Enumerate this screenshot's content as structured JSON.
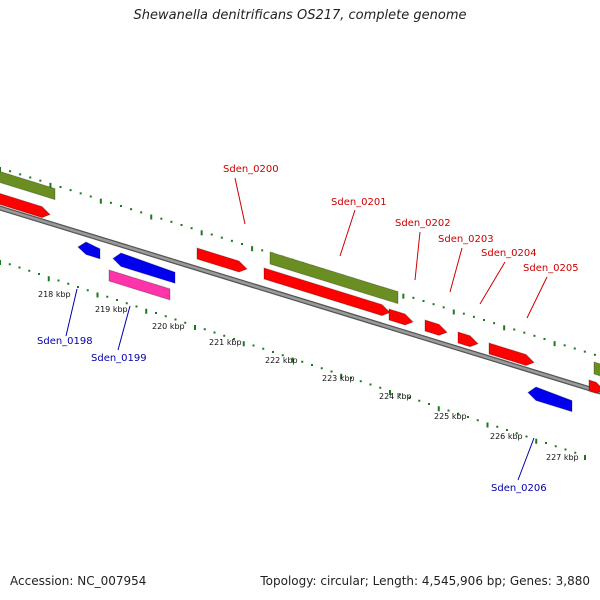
{
  "title": "Shewanella denitrificans OS217, complete genome",
  "footer": {
    "accession": "Accession: NC_007954",
    "summary": "Topology: circular; Length: 4,545,906 bp; Genes: 3,880"
  },
  "colors": {
    "forward_gene": "#ff0000",
    "reverse_gene": "#0000ee",
    "rna_gene": "#ff33aa",
    "cds_region": "#6b8e23",
    "backbone": "#808080",
    "tick": "#1a7a1a",
    "label_forward": "#cc0000",
    "label_reverse": "#0000aa"
  },
  "axis": {
    "tick_labels": [
      "218 kbp",
      "219 kbp",
      "220 kbp",
      "221 kbp",
      "222 kbp",
      "223 kbp",
      "224 kbp",
      "225 kbp",
      "226 kbp",
      "227 kbp"
    ]
  },
  "genes": [
    {
      "name": "Sden_0198",
      "strand": "reverse"
    },
    {
      "name": "Sden_0199",
      "strand": "reverse"
    },
    {
      "name": "Sden_0200",
      "strand": "forward"
    },
    {
      "name": "Sden_0201",
      "strand": "forward"
    },
    {
      "name": "Sden_0202",
      "strand": "forward"
    },
    {
      "name": "Sden_0203",
      "strand": "forward"
    },
    {
      "name": "Sden_0204",
      "strand": "forward"
    },
    {
      "name": "Sden_0205",
      "strand": "forward"
    },
    {
      "name": "Sden_0206",
      "strand": "reverse"
    }
  ]
}
